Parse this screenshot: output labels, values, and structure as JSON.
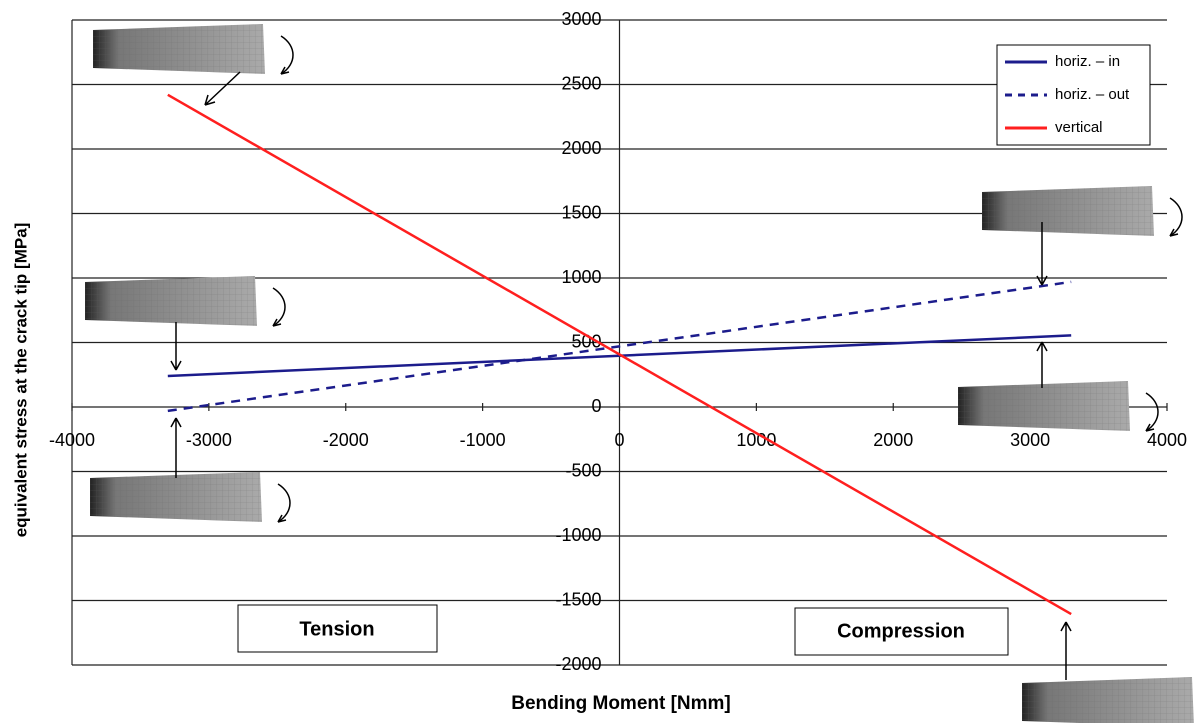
{
  "chart_data": {
    "type": "line",
    "xlabel": "Bending Moment [Nmm]",
    "ylabel": "equivalent stress at the crack tip [MPa]",
    "x": [
      -3300,
      3300
    ],
    "series": [
      {
        "name": "horiz. – in",
        "color": "#1c1c8c",
        "linestyle": "solid",
        "values": [
          240,
          555
        ]
      },
      {
        "name": "horiz. – out",
        "color": "#1c1c8c",
        "linestyle": "dashed",
        "values": [
          -30,
          970
        ]
      },
      {
        "name": "vertical",
        "color": "#ff1f1f",
        "linestyle": "solid",
        "values": [
          2420,
          -1605
        ]
      }
    ],
    "xlim": [
      -4000,
      4000
    ],
    "xticks": [
      -4000,
      -3000,
      -2000,
      -1000,
      0,
      1000,
      2000,
      3000,
      4000
    ],
    "ylim": [
      -2000,
      3000
    ],
    "yticks": [
      -2000,
      -1500,
      -1000,
      -500,
      0,
      500,
      1000,
      1500,
      2000,
      2500,
      3000
    ],
    "grid": true,
    "legend": "upper right",
    "annotations": [
      "Tension",
      "Compression"
    ]
  }
}
